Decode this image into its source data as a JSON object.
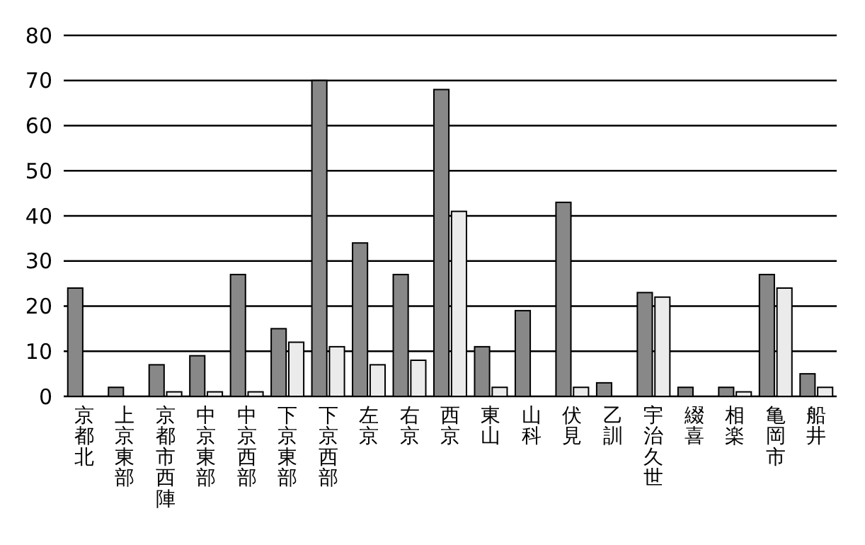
{
  "chart_data": {
    "type": "bar",
    "categories": [
      "京都北",
      "上京東部",
      "京都市西陣",
      "中京東部",
      "中京西部",
      "下京東部",
      "下京西部",
      "左京",
      "右京",
      "西京",
      "東山",
      "山科",
      "伏見",
      "乙訓",
      "宇治久世",
      "綴喜",
      "相楽",
      "亀岡市",
      "船井"
    ],
    "series": [
      {
        "color": "#888888",
        "values": [
          24,
          2,
          7,
          9,
          27,
          15,
          70,
          34,
          27,
          68,
          11,
          19,
          43,
          3,
          23,
          2,
          2,
          27,
          5
        ]
      },
      {
        "color": "#ebebeb",
        "values": [
          null,
          null,
          1,
          1,
          1,
          12,
          11,
          7,
          8,
          41,
          2,
          null,
          2,
          null,
          22,
          null,
          1,
          24,
          2
        ]
      }
    ],
    "ylim": [
      0,
      80
    ],
    "yticks": [
      0,
      10,
      20,
      30,
      40,
      50,
      60,
      70,
      80
    ],
    "grid": "y"
  }
}
